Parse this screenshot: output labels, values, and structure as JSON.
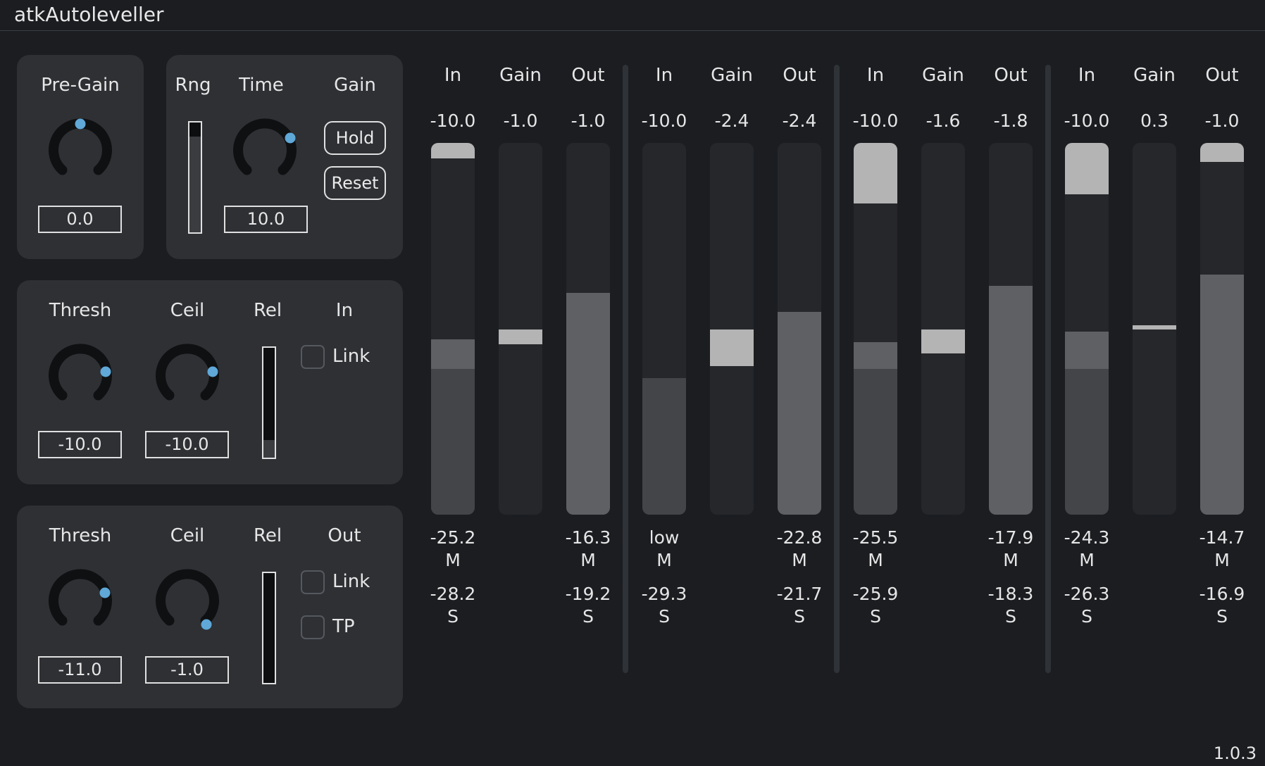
{
  "app": {
    "title": "atkAutoleveller",
    "version": "1.0.3"
  },
  "pregain": {
    "label": "Pre-Gain",
    "value": "0.0"
  },
  "range_panel": {
    "rng_label": "Rng",
    "time_label": "Time",
    "gain_label": "Gain",
    "time_value": "10.0",
    "hold_label": "Hold",
    "reset_label": "Reset"
  },
  "in_panel": {
    "thresh_label": "Thresh",
    "ceil_label": "Ceil",
    "rel_label": "Rel",
    "mode_label": "In",
    "thresh_value": "-10.0",
    "ceil_value": "-10.0",
    "link_label": "Link",
    "link_checked": false
  },
  "out_panel": {
    "thresh_label": "Thresh",
    "ceil_label": "Ceil",
    "rel_label": "Rel",
    "mode_label": "Out",
    "thresh_value": "-11.0",
    "ceil_value": "-1.0",
    "link_label": "Link",
    "link_checked": false,
    "tp_label": "TP",
    "tp_checked": false
  },
  "colors": {
    "knob_dot": "#5fa8d8",
    "knob_arc": "#0f1012",
    "meter_bg": "#26272b",
    "meter_light": "#b4b4b4",
    "meter_mid": "#5f6063",
    "meter_dark": "#444548"
  },
  "channels": [
    {
      "in": {
        "header": "In",
        "value": "-10.0",
        "m": "-25.2",
        "m_label": "M",
        "s": "-28.2",
        "s_label": "S"
      },
      "gain": {
        "header": "Gain",
        "value": "-1.0"
      },
      "out": {
        "header": "Out",
        "value": "-1.0",
        "m": "-16.3",
        "m_label": "M",
        "s": "-19.2",
        "s_label": "S"
      }
    },
    {
      "in": {
        "header": "In",
        "value": "-10.0",
        "m": "low",
        "m_label": "M",
        "s": "-29.3",
        "s_label": "S"
      },
      "gain": {
        "header": "Gain",
        "value": "-2.4"
      },
      "out": {
        "header": "Out",
        "value": "-2.4",
        "m": "-22.8",
        "m_label": "M",
        "s": "-21.7",
        "s_label": "S"
      }
    },
    {
      "in": {
        "header": "In",
        "value": "-10.0",
        "m": "-25.5",
        "m_label": "M",
        "s": "-25.9",
        "s_label": "S"
      },
      "gain": {
        "header": "Gain",
        "value": "-1.6"
      },
      "out": {
        "header": "Out",
        "value": "-1.8",
        "m": "-17.9",
        "m_label": "M",
        "s": "-18.3",
        "s_label": "S"
      }
    },
    {
      "in": {
        "header": "In",
        "value": "-10.0",
        "m": "-24.3",
        "m_label": "M",
        "s": "-26.3",
        "s_label": "S"
      },
      "gain": {
        "header": "Gain",
        "value": "0.3"
      },
      "out": {
        "header": "Out",
        "value": "-1.0",
        "m": "-14.7",
        "m_label": "M",
        "s": "-16.9",
        "s_label": "S"
      }
    }
  ]
}
